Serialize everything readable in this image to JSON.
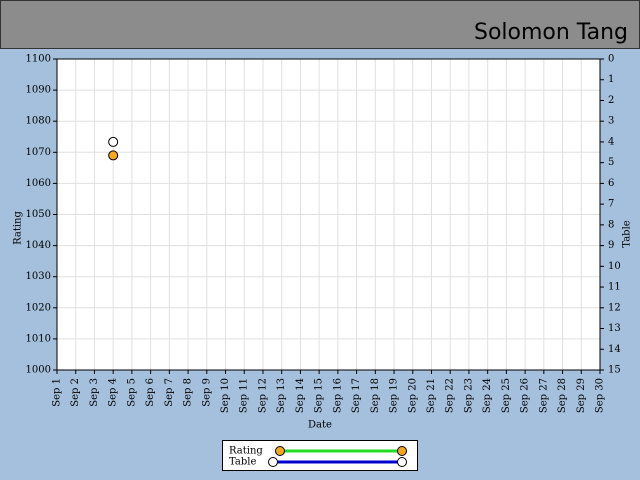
{
  "header": "Solomon Tang",
  "chart_data": {
    "type": "line",
    "x_label": "Date",
    "y_label": "Rating",
    "y2_label": "Table",
    "categories": [
      "Sep 1",
      "Sep 2",
      "Sep 3",
      "Sep 4",
      "Sep 5",
      "Sep 6",
      "Sep 7",
      "Sep 8",
      "Sep 9",
      "Sep 10",
      "Sep 11",
      "Sep 12",
      "Sep 13",
      "Sep 14",
      "Sep 15",
      "Sep 16",
      "Sep 17",
      "Sep 18",
      "Sep 19",
      "Sep 20",
      "Sep 21",
      "Sep 22",
      "Sep 23",
      "Sep 24",
      "Sep 25",
      "Sep 26",
      "Sep 27",
      "Sep 28",
      "Sep 29",
      "Sep 30"
    ],
    "series": [
      {
        "name": "Rating",
        "color": "#22dd22",
        "marker_color": "#f5a623",
        "values": [
          null,
          null,
          null,
          1069,
          null,
          null,
          null,
          null,
          null,
          null,
          null,
          null,
          null,
          null,
          null,
          null,
          null,
          null,
          null,
          null,
          null,
          null,
          null,
          null,
          null,
          null,
          null,
          null,
          null,
          null
        ]
      },
      {
        "name": "Table",
        "color": "#0000cc",
        "marker_color": "#ffffff",
        "axis": "y2",
        "values": [
          null,
          null,
          null,
          4,
          null,
          null,
          null,
          null,
          null,
          null,
          null,
          null,
          null,
          null,
          null,
          null,
          null,
          null,
          null,
          null,
          null,
          null,
          null,
          null,
          null,
          null,
          null,
          null,
          null,
          null
        ]
      }
    ],
    "ylim": [
      1000,
      1100
    ],
    "yticks": [
      1000,
      1010,
      1020,
      1030,
      1040,
      1050,
      1060,
      1070,
      1080,
      1090,
      1100
    ],
    "y2lim": [
      15,
      0
    ],
    "y2ticks": [
      0,
      1,
      2,
      3,
      4,
      5,
      6,
      7,
      8,
      9,
      10,
      11,
      12,
      13,
      14,
      15
    ],
    "grid": true
  }
}
